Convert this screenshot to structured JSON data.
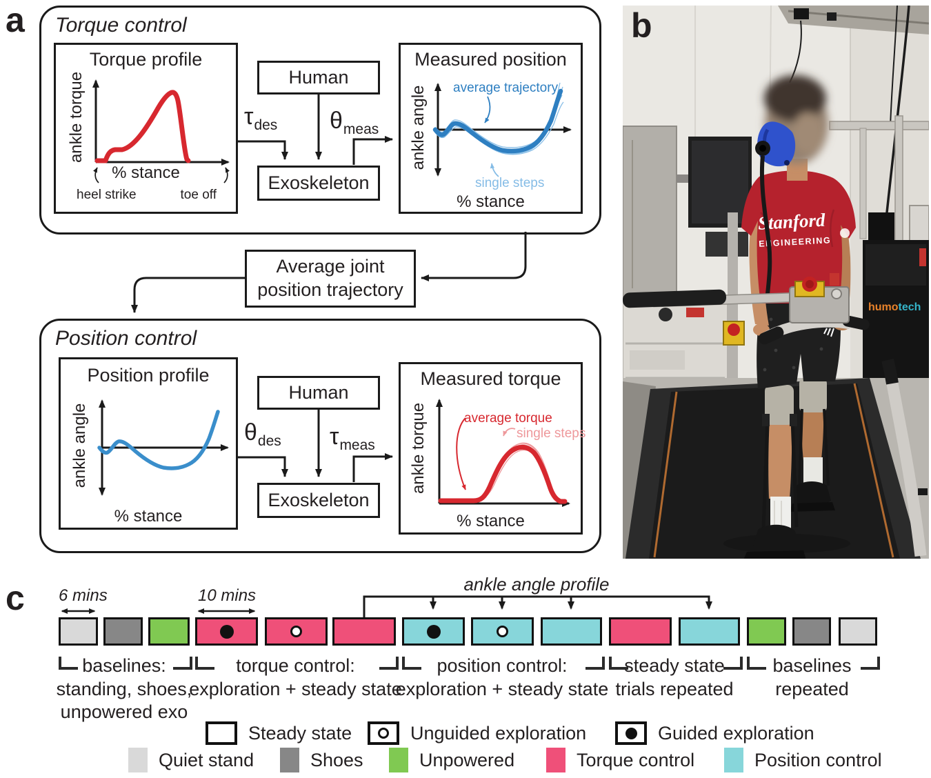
{
  "figure": {
    "panel_a_label": "a",
    "panel_b_label": "b",
    "panel_c_label": "c"
  },
  "torque_control": {
    "title": "Torque control",
    "profile": {
      "title": "Torque profile",
      "ylabel": "ankle torque",
      "xlabel": "% stance",
      "start_label": "heel strike",
      "end_label": "toe off"
    },
    "human": "Human",
    "exoskeleton": "Exoskeleton",
    "signal_in": {
      "symbol": "τ",
      "sub": "des"
    },
    "signal_out": {
      "symbol": "θ",
      "sub": "meas"
    },
    "measured": {
      "title": "Measured position",
      "ylabel": "ankle angle",
      "xlabel": "% stance",
      "avg_label": "average trajectory",
      "steps_label": "single steps"
    }
  },
  "average_box": {
    "line1": "Average joint",
    "line2": "position trajectory"
  },
  "position_control": {
    "title": "Position control",
    "profile": {
      "title": "Position profile",
      "ylabel": "ankle angle",
      "xlabel": "% stance"
    },
    "human": "Human",
    "exoskeleton": "Exoskeleton",
    "signal_in": {
      "symbol": "θ",
      "sub": "des"
    },
    "signal_out": {
      "symbol": "τ",
      "sub": "meas"
    },
    "measured": {
      "title": "Measured torque",
      "ylabel": "ankle torque",
      "xlabel": "% stance",
      "avg_label": "average torque",
      "steps_label": "single steps"
    }
  },
  "photo": {
    "shirt_line1": "Stanford",
    "shirt_line2": "ENGINEERING",
    "brand_part1": "humo",
    "brand_part2": "tech"
  },
  "timeline": {
    "duration_first": "6 mins",
    "duration_torque": "10 mins",
    "profile_arrow_label": "ankle angle profile",
    "blocks": [
      {
        "type": "quiet_stand",
        "marker": "none"
      },
      {
        "type": "shoes",
        "marker": "none"
      },
      {
        "type": "unpowered",
        "marker": "none"
      },
      {
        "type": "torque",
        "marker": "filled"
      },
      {
        "type": "torque",
        "marker": "open"
      },
      {
        "type": "torque",
        "marker": "none"
      },
      {
        "type": "position",
        "marker": "filled"
      },
      {
        "type": "position",
        "marker": "open"
      },
      {
        "type": "position",
        "marker": "none"
      },
      {
        "type": "torque",
        "marker": "none"
      },
      {
        "type": "position",
        "marker": "none"
      },
      {
        "type": "unpowered",
        "marker": "none"
      },
      {
        "type": "shoes",
        "marker": "none"
      },
      {
        "type": "quiet_stand",
        "marker": "none"
      }
    ],
    "groups": [
      {
        "lines": [
          "baselines:",
          "standing, shoes,",
          "unpowered exo"
        ]
      },
      {
        "lines": [
          "torque control:",
          "exploration + steady state"
        ]
      },
      {
        "lines": [
          "position control:",
          "exploration + steady state"
        ]
      },
      {
        "lines": [
          "steady state",
          "trials repeated"
        ]
      },
      {
        "lines": [
          "baselines",
          "repeated"
        ]
      }
    ]
  },
  "legend": {
    "markers": [
      {
        "label": "Steady state",
        "marker": "none"
      },
      {
        "label": "Unguided exploration",
        "marker": "open"
      },
      {
        "label": "Guided exploration",
        "marker": "filled"
      }
    ],
    "conditions": [
      {
        "label": "Quiet stand",
        "type": "quiet_stand"
      },
      {
        "label": "Shoes",
        "type": "shoes"
      },
      {
        "label": "Unpowered",
        "type": "unpowered"
      },
      {
        "label": "Torque control",
        "type": "torque"
      },
      {
        "label": "Position control",
        "type": "position"
      }
    ]
  },
  "colors": {
    "quiet_stand": "#d9d9d9",
    "shoes": "#878787",
    "unpowered": "#80c952",
    "torque": "#ef5079",
    "position": "#87d6da",
    "torque_curve": "#d7282f",
    "position_curve": "#2e7fc1",
    "steps_blue": "#85bce6",
    "steps_red": "#ee989b",
    "ink": "#1a1a1a"
  }
}
